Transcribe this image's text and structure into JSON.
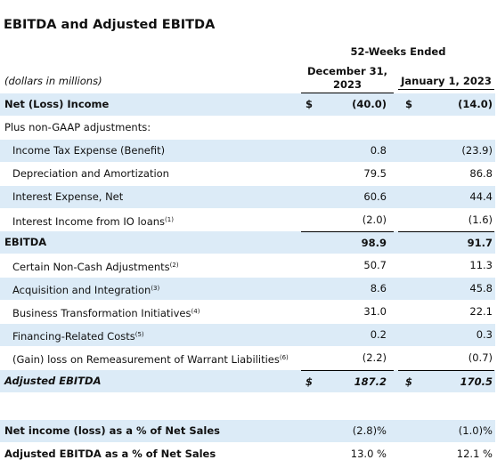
{
  "title": "EBITDA and Adjusted EBITDA",
  "period_header": "52-Weeks Ended",
  "units": "(dollars in millions)",
  "columns": [
    "December 31, 2023",
    "January 1, 2023"
  ],
  "rows": [
    {
      "label": "Net (Loss) Income",
      "bold": true,
      "cur_sign": "$",
      "cur": "(40.0)",
      "prior_sign": "$",
      "prior": "(14.0)"
    },
    {
      "label": "Plus non-GAAP adjustments:"
    },
    {
      "label": "Income Tax Expense (Benefit)",
      "indent": true,
      "cur": "0.8",
      "prior": "(23.9)"
    },
    {
      "label": "Depreciation and Amortization",
      "indent": true,
      "cur": "79.5",
      "prior": "86.8"
    },
    {
      "label": "Interest Expense, Net",
      "indent": true,
      "cur": "60.6",
      "prior": "44.4"
    },
    {
      "label": "Interest Income from IO loans",
      "note": "(1)",
      "indent": true,
      "cur": "(2.0)",
      "prior": "(1.6)"
    },
    {
      "label": "EBITDA",
      "bold": true,
      "rule": true,
      "cur": "98.9",
      "prior": "91.7"
    },
    {
      "label": "Certain Non-Cash Adjustments",
      "note": "(2)",
      "indent": true,
      "cur": "50.7",
      "prior": "11.3"
    },
    {
      "label": "Acquisition and Integration",
      "note": "(3)",
      "indent": true,
      "cur": "8.6",
      "prior": "45.8"
    },
    {
      "label": "Business Transformation Initiatives",
      "note": "(4)",
      "indent": true,
      "cur": "31.0",
      "prior": "22.1"
    },
    {
      "label": "Financing-Related Costs",
      "note": "(5)",
      "indent": true,
      "cur": "0.2",
      "prior": "0.3"
    },
    {
      "label": "(Gain) loss on Remeasurement of Warrant Liabilities",
      "note": "(6)",
      "indent": true,
      "cur": "(2.2)",
      "prior": "(0.7)"
    },
    {
      "label": "Adjusted EBITDA",
      "bold": true,
      "italic": true,
      "rule": true,
      "cur_sign": "$",
      "cur": "187.2",
      "prior_sign": "$",
      "prior": "170.5"
    }
  ],
  "ratios": [
    {
      "label": "Net income (loss) as a % of Net Sales",
      "label_bold": true,
      "cur": "(2.8)%",
      "prior": "(1.0)%"
    },
    {
      "label": "Adjusted EBITDA as a % of Net Sales",
      "label_bold": true,
      "cur": "13.0 %",
      "prior": "12.1 %"
    }
  ]
}
